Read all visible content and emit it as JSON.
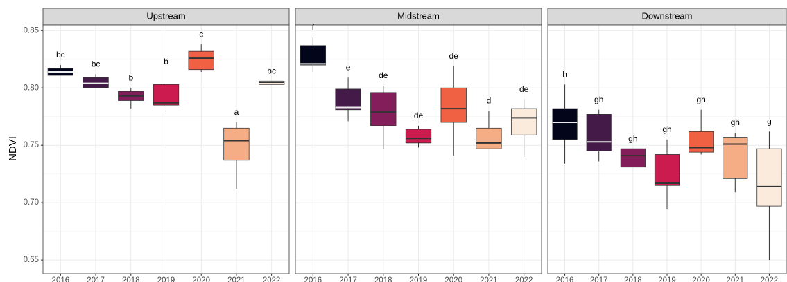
{
  "chart_data": [
    {
      "type": "box",
      "title": "Upstream",
      "ylabel": "NDVI",
      "categories": [
        "2016",
        "2017",
        "2018",
        "2019",
        "2020",
        "2021",
        "2022"
      ],
      "colors": [
        "#03051a",
        "#441a48",
        "#841e5a",
        "#cb1b4f",
        "#f06043",
        "#f5ad86",
        "#faebdd"
      ],
      "max": [
        0.82,
        0.812,
        0.8,
        0.814,
        0.838,
        0.77,
        0.806
      ],
      "q3": [
        0.817,
        0.809,
        0.797,
        0.803,
        0.832,
        0.765,
        0.806
      ],
      "median": [
        0.814,
        0.804,
        0.793,
        0.787,
        0.826,
        0.754,
        0.805
      ],
      "q1": [
        0.811,
        0.8,
        0.789,
        0.785,
        0.816,
        0.737,
        0.803
      ],
      "min": [
        0.811,
        0.8,
        0.782,
        0.779,
        0.814,
        0.712,
        0.803
      ],
      "labels": [
        "bc",
        "bc",
        "b",
        "b",
        "c",
        "a",
        "bc"
      ],
      "ylim": [
        0.638,
        0.855
      ],
      "yticks": [
        0.65,
        {
          "value": 0.7,
          "label": "0.70"
        },
        0.75,
        {
          "value": 0.8,
          "label": "0.80"
        },
        0.85
      ],
      "grid": true
    },
    {
      "type": "box",
      "title": "Midstream",
      "categories": [
        "2016",
        "2017",
        "2018",
        "2019",
        "2020",
        "2021",
        "2022"
      ],
      "colors": [
        "#03051a",
        "#441a48",
        "#841e5a",
        "#cb1b4f",
        "#f06043",
        "#f5ad86",
        "#faebdd"
      ],
      "max": [
        0.844,
        0.809,
        0.802,
        0.767,
        0.819,
        0.78,
        0.79
      ],
      "q3": [
        0.837,
        0.799,
        0.796,
        0.764,
        0.8,
        0.765,
        0.782
      ],
      "median": [
        0.821,
        0.783,
        0.779,
        0.756,
        0.782,
        0.752,
        0.774
      ],
      "q1": [
        0.82,
        0.781,
        0.767,
        0.752,
        0.77,
        0.747,
        0.759
      ],
      "min": [
        0.814,
        0.771,
        0.747,
        0.748,
        0.741,
        0.747,
        0.74
      ],
      "labels": [
        "f",
        "e",
        "de",
        "de",
        "de",
        "d",
        "de"
      ],
      "ylim": [
        0.638,
        0.855
      ],
      "yticks": [
        0.65,
        {
          "value": 0.7,
          "label": "0.70"
        },
        0.75,
        {
          "value": 0.8,
          "label": "0.80"
        },
        0.85
      ],
      "grid": true
    },
    {
      "type": "box",
      "title": "Downstream",
      "categories": [
        "2016",
        "2017",
        "2018",
        "2019",
        "2020",
        "2021",
        "2022"
      ],
      "colors": [
        "#03051a",
        "#441a48",
        "#841e5a",
        "#cb1b4f",
        "#f06043",
        "#f5ad86",
        "#faebdd"
      ],
      "max": [
        0.803,
        0.781,
        0.747,
        0.755,
        0.781,
        0.761,
        0.762
      ],
      "q3": [
        0.782,
        0.777,
        0.747,
        0.742,
        0.762,
        0.757,
        0.747
      ],
      "median": [
        0.77,
        0.753,
        0.741,
        0.717,
        0.748,
        0.751,
        0.714
      ],
      "q1": [
        0.755,
        0.745,
        0.731,
        0.715,
        0.744,
        0.721,
        0.697
      ],
      "min": [
        0.734,
        0.736,
        0.731,
        0.694,
        0.742,
        0.709,
        0.65
      ],
      "labels": [
        "h",
        "gh",
        "gh",
        "gh",
        "gh",
        "gh",
        "g"
      ],
      "ylim": [
        0.638,
        0.855
      ],
      "yticks": [
        0.65,
        {
          "value": 0.7,
          "label": "0.70"
        },
        0.75,
        {
          "value": 0.8,
          "label": "0.80"
        },
        0.85
      ],
      "grid": true
    }
  ]
}
